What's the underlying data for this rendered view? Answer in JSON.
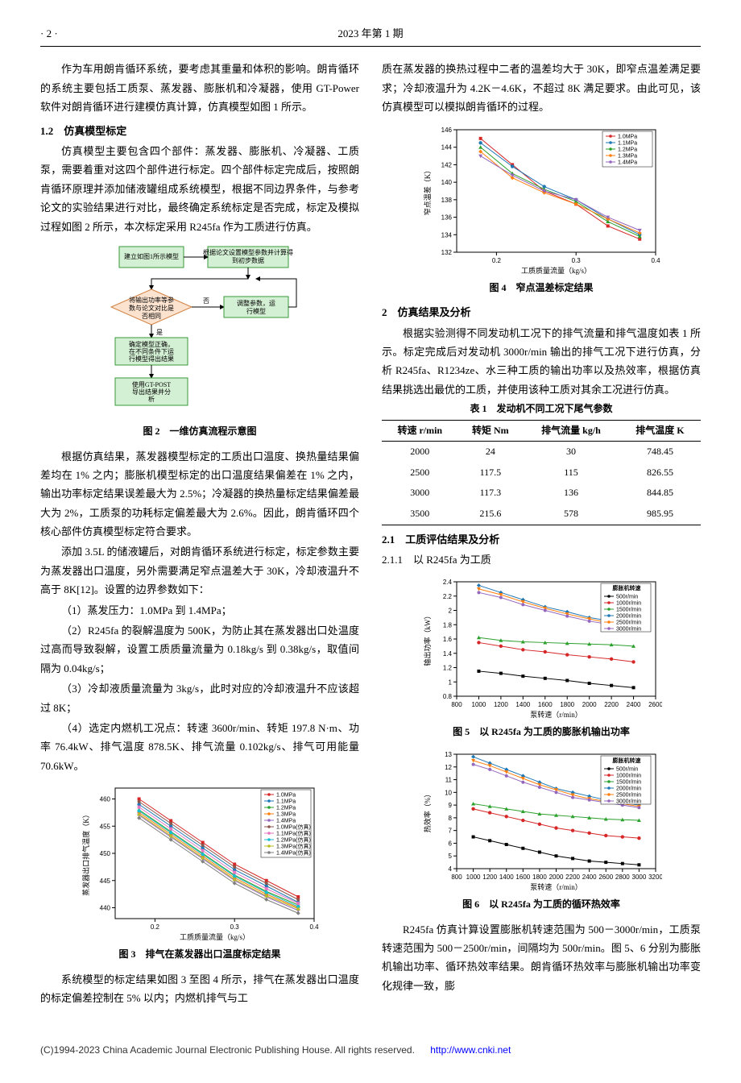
{
  "header": {
    "page_no": "· 2 ·",
    "issue": "2023 年第 1 期"
  },
  "left_col": {
    "p1": "作为车用朗肯循环系统，要考虑其重量和体积的影响。朗肯循环的系统主要包括工质泵、蒸发器、膨胀机和冷凝器，使用 GT-Power 软件对朗肯循环进行建模仿真计算，仿真模型如图 1 所示。",
    "h12": "1.2　仿真模型标定",
    "p2": "仿真模型主要包含四个部件：蒸发器、膨胀机、冷凝器、工质泵，需要着重对这四个部件进行标定。四个部件标定完成后，按照朗肯循环原理并添加储液罐组成系统模型，根据不同边界条件，与参考论文的实验结果进行对比，最终确定系统标定是否完成，标定及模拟过程如图 2 所示，本次标定采用 R245fa 作为工质进行仿真。",
    "fig2_caption": "图 2　一维仿真流程示意图",
    "fig2_boxes": {
      "b1": "建立如图1所示模型",
      "b2_l1": "根据论文设置模型参数并计算得",
      "b2_l2": "到初步数据",
      "b3_l1": "将输出功率等参",
      "b3_l2": "数与论文对比是",
      "b3_l3": "否相同",
      "b4_l1": "调整参数，运",
      "b4_l2": "行模型",
      "yes": "是",
      "no": "否",
      "b5_l1": "确定模型正确，",
      "b5_l2": "在不同条件下运",
      "b5_l3": "行模型得出结果",
      "b6_l1": "使用GT-POST",
      "b6_l2": "导出结果并分",
      "b6_l3": "析"
    },
    "p3": "根据仿真结果，蒸发器模型标定的工质出口温度、换热量结果偏差均在 1% 之内；膨胀机模型标定的出口温度结果偏差在 1% 之内，输出功率标定结果误差最大为 2.5%；冷凝器的换热量标定结果偏差最大为 2%，工质泵的功耗标定偏差最大为 2.6%。因此，朗肯循环四个核心部件仿真模型标定符合要求。",
    "p4": "添加 3.5L 的储液罐后，对朗肯循环系统进行标定，标定参数主要为蒸发器出口温度，另外需要满足窄点温差大于 30K，冷却液温升不高于 8K[12]。设置的边界参数如下：",
    "li1": "（1）蒸发压力：1.0MPa 到 1.4MPa；",
    "li2": "（2）R245fa 的裂解温度为 500K，为防止其在蒸发器出口处温度过高而导致裂解，设置工质质量流量为 0.18kg/s 到 0.38kg/s，取值间隔为 0.04kg/s；",
    "li3": "（3）冷却液质量流量为 3kg/s，此时对应的冷却液温升不应该超过 8K；",
    "li4": "（4）选定内燃机工况点：转速 3600r/min、转矩 197.8 N·m、功率 76.4kW、排气温度 878.5K、排气流量 0.102kg/s、排气可用能量 70.6kW。",
    "fig3_caption": "图 3　排气在蒸发器出口温度标定结果",
    "p5": "系统模型的标定结果如图 3 至图 4 所示，排气在蒸发器出口温度的标定偏差控制在 5% 以内；内燃机排气与工",
    "fig3": {
      "xlabel": "工质质量流量（kg/s）",
      "ylabel": "蒸发器出口排气温度（K）",
      "xlim": [
        0.15,
        0.4
      ],
      "ylim": [
        438,
        462
      ],
      "xticks": [
        0.2,
        0.3,
        0.4
      ],
      "yticks": [
        440,
        445,
        450,
        455,
        460
      ],
      "legend": [
        "1.0MPa",
        "1.1MPa",
        "1.2MPa",
        "1.3MPa",
        "1.4MPa",
        "1.0MPa(仿真)",
        "1.1MPa(仿真)",
        "1.2MPa(仿真)",
        "1.3MPa(仿真)",
        "1.4MPa(仿真)"
      ],
      "x": [
        0.18,
        0.22,
        0.26,
        0.3,
        0.34,
        0.38
      ],
      "series": [
        [
          460,
          456,
          452,
          448,
          445,
          442
        ],
        [
          459,
          455,
          451,
          447,
          444,
          441
        ],
        [
          458,
          454,
          450,
          446,
          443,
          440.5
        ],
        [
          457.5,
          453.5,
          449.5,
          445.5,
          442.5,
          440
        ],
        [
          457,
          453,
          449,
          445,
          442,
          439.5
        ],
        [
          459.5,
          455.5,
          451.5,
          447.5,
          444.5,
          441.5
        ],
        [
          458.5,
          454.5,
          450.5,
          446.5,
          443.5,
          440.8
        ],
        [
          457.8,
          453.8,
          449.8,
          445.8,
          442.8,
          440.2
        ],
        [
          457.2,
          453.2,
          449.2,
          445.2,
          442.2,
          439.8
        ],
        [
          456.5,
          452.5,
          448.5,
          444.5,
          441.5,
          439
        ]
      ],
      "colors": [
        "#d62728",
        "#1f77b4",
        "#2ca02c",
        "#ff7f0e",
        "#9467bd",
        "#8c564b",
        "#e377c2",
        "#17becf",
        "#bcbd22",
        "#7f7f7f"
      ]
    }
  },
  "right_col": {
    "p1": "质在蒸发器的换热过程中二者的温差均大于 30K，即窄点温差满足要求；冷却液温升为 4.2K－4.6K，不超过 8K 满足要求。由此可见，该仿真模型可以模拟朗肯循环的过程。",
    "fig4_caption": "图 4　窄点温差标定结果",
    "fig4": {
      "xlabel": "工质质量流量（kg/s）",
      "ylabel": "窄点温差（K）",
      "xlim": [
        0.15,
        0.4
      ],
      "ylim": [
        132,
        146
      ],
      "xticks": [
        0.2,
        0.3,
        0.4
      ],
      "yticks": [
        132,
        134,
        136,
        138,
        140,
        142,
        144,
        146
      ],
      "legend": [
        "1.0MPa",
        "1.1MPa",
        "1.2MPa",
        "1.3MPa",
        "1.4MPa"
      ],
      "x": [
        0.18,
        0.22,
        0.26,
        0.3,
        0.34,
        0.38
      ],
      "series": [
        [
          145,
          142,
          139,
          137.5,
          135,
          133.5
        ],
        [
          144.5,
          141.8,
          139.5,
          138,
          135.8,
          134
        ],
        [
          144,
          141,
          139.2,
          137.8,
          135.5,
          133.8
        ],
        [
          143.5,
          140.5,
          138.8,
          137.5,
          135.8,
          134.2
        ],
        [
          143,
          140.8,
          139,
          138,
          136,
          134.5
        ]
      ],
      "colors": [
        "#d62728",
        "#1f77b4",
        "#2ca02c",
        "#ff7f0e",
        "#9467bd"
      ],
      "markers": [
        "square",
        "circle",
        "triangle",
        "diamond",
        "down-tri"
      ]
    },
    "h2": "2　仿真结果及分析",
    "p2": "根据实验测得不同发动机工况下的排气流量和排气温度如表 1 所示。标定完成后对发动机 3000r/min 输出的排气工况下进行仿真，分析 R245fa、R1234ze、水三种工质的输出功率以及热效率，根据仿真结果挑选出最优的工质，并使用该种工质对其余工况进行仿真。",
    "tbl1_caption": "表 1　发动机不同工况下尾气参数",
    "tbl1": {
      "cols": [
        "转速 r/min",
        "转矩 Nm",
        "排气流量 kg/h",
        "排气温度 K"
      ],
      "rows": [
        [
          "2000",
          "24",
          "30",
          "748.45"
        ],
        [
          "2500",
          "117.5",
          "115",
          "826.55"
        ],
        [
          "3000",
          "117.3",
          "136",
          "844.85"
        ],
        [
          "3500",
          "215.6",
          "578",
          "985.95"
        ]
      ]
    },
    "h21": "2.1　工质评估结果及分析",
    "h211": "2.1.1　以 R245fa 为工质",
    "fig5_caption": "图 5　以 R245fa 为工质的膨胀机输出功率",
    "fig5": {
      "xlabel": "泵转速（r/min）",
      "ylabel": "输出功率（kW）",
      "xlim": [
        800,
        2600
      ],
      "ylim": [
        0.8,
        2.4
      ],
      "xticks": [
        800,
        1000,
        1200,
        1400,
        1600,
        1800,
        2000,
        2200,
        2400,
        2600
      ],
      "yticks": [
        0.8,
        1.0,
        1.2,
        1.4,
        1.6,
        1.8,
        2.0,
        2.2,
        2.4
      ],
      "legend_title": "膨胀机转速",
      "legend": [
        "500r/min",
        "1000r/min",
        "1500r/min",
        "2000r/min",
        "2500r/min",
        "3000r/min"
      ],
      "x": [
        1000,
        1200,
        1400,
        1600,
        1800,
        2000,
        2200,
        2400
      ],
      "series": [
        [
          1.15,
          1.12,
          1.08,
          1.05,
          1.02,
          0.98,
          0.95,
          0.92
        ],
        [
          1.55,
          1.5,
          1.45,
          1.42,
          1.38,
          1.35,
          1.32,
          1.28
        ],
        [
          1.62,
          1.58,
          1.56,
          1.55,
          1.54,
          1.53,
          1.52,
          1.5
        ],
        [
          2.35,
          2.25,
          2.15,
          2.05,
          1.98,
          1.9,
          1.85,
          1.8
        ],
        [
          2.3,
          2.22,
          2.12,
          2.03,
          1.95,
          1.88,
          1.82,
          1.78
        ],
        [
          2.25,
          2.18,
          2.08,
          2.0,
          1.92,
          1.85,
          1.8,
          1.75
        ]
      ],
      "colors": [
        "#000",
        "#d62728",
        "#2ca02c",
        "#1f77b4",
        "#ff7f0e",
        "#9467bd"
      ]
    },
    "fig6_caption": "图 6　以 R245fa 为工质的循环热效率",
    "fig6": {
      "xlabel": "泵转速（r/min）",
      "ylabel": "热效率（%）",
      "xlim": [
        800,
        3200
      ],
      "ylim": [
        4,
        13
      ],
      "xticks": [
        800,
        1000,
        1200,
        1400,
        1600,
        1800,
        2000,
        2200,
        2400,
        2600,
        2800,
        3000,
        3200
      ],
      "yticks": [
        4,
        5,
        6,
        7,
        8,
        9,
        10,
        11,
        12,
        13
      ],
      "legend_title": "膨胀机转速",
      "legend": [
        "500r/min",
        "1000r/min",
        "1500r/min",
        "2000r/min",
        "2500r/min",
        "3000r/min"
      ],
      "x": [
        1000,
        1200,
        1400,
        1600,
        1800,
        2000,
        2200,
        2400,
        2600,
        2800,
        3000
      ],
      "series": [
        [
          6.5,
          6.2,
          5.9,
          5.6,
          5.3,
          5.0,
          4.8,
          4.6,
          4.5,
          4.4,
          4.3
        ],
        [
          8.7,
          8.4,
          8.1,
          7.8,
          7.5,
          7.2,
          7.0,
          6.8,
          6.6,
          6.5,
          6.4
        ],
        [
          9.1,
          8.9,
          8.7,
          8.5,
          8.3,
          8.2,
          8.1,
          8.0,
          7.9,
          7.85,
          7.8
        ],
        [
          12.8,
          12.3,
          11.8,
          11.3,
          10.8,
          10.3,
          10.0,
          9.7,
          9.4,
          9.2,
          9.0
        ],
        [
          12.5,
          12.1,
          11.6,
          11.1,
          10.6,
          10.2,
          9.8,
          9.5,
          9.3,
          9.1,
          8.9
        ],
        [
          12.2,
          11.8,
          11.3,
          10.8,
          10.4,
          10.0,
          9.6,
          9.4,
          9.2,
          9.0,
          8.8
        ]
      ],
      "colors": [
        "#000",
        "#d62728",
        "#2ca02c",
        "#1f77b4",
        "#ff7f0e",
        "#9467bd"
      ]
    },
    "p3": "R245fa 仿真计算设置膨胀机转速范围为 500－3000r/min，工质泵转速范围为 500－2500r/min，间隔均为 500r/min。图 5、6 分别为膨胀机输出功率、循环热效率结果。朗肯循环热效率与膨胀机输出功率变化规律一致，膨"
  },
  "footer": {
    "text": "(C)1994-2023 China Academic Journal Electronic Publishing House. All rights reserved.",
    "url": "http://www.cnki.net"
  }
}
